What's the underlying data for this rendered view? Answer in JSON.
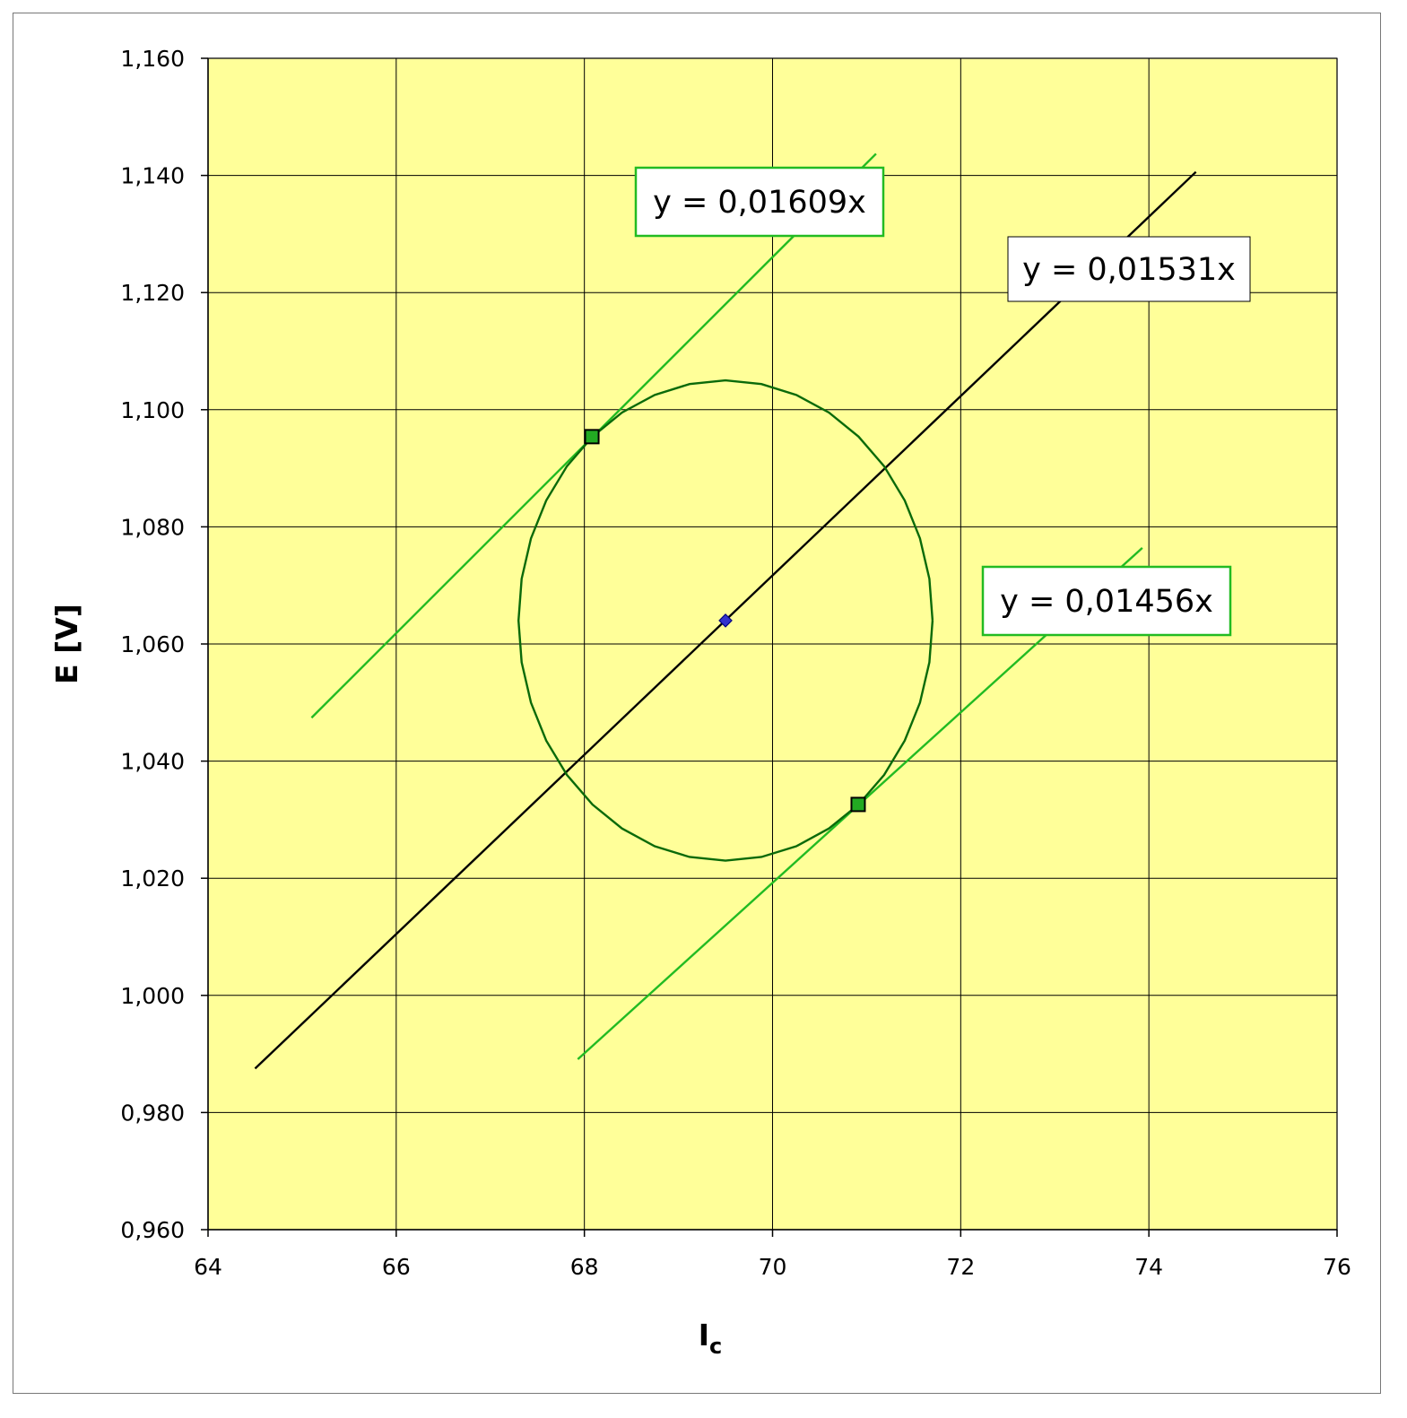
{
  "chart_data": {
    "type": "scatter",
    "title": "",
    "xlabel": "I",
    "xlabel_subscript": "c",
    "ylabel": "E [V]",
    "xlim": [
      64,
      76
    ],
    "ylim": [
      0.96,
      1.16
    ],
    "x_ticks": [
      64,
      66,
      68,
      70,
      72,
      74,
      76
    ],
    "x_tick_labels": [
      "64",
      "66",
      "68",
      "70",
      "72",
      "74",
      "76"
    ],
    "y_ticks": [
      0.96,
      0.98,
      1.0,
      1.02,
      1.04,
      1.06,
      1.08,
      1.1,
      1.12,
      1.14,
      1.16
    ],
    "y_tick_labels": [
      "0,960",
      "0,980",
      "1,000",
      "1,020",
      "1,040",
      "1,060",
      "1,080",
      "1,100",
      "1,120",
      "1,140",
      "1,160"
    ],
    "grid": true,
    "legend": "none",
    "plot_background": "#ffff99",
    "series": [
      {
        "kind": "line",
        "label": "y = 0,01609x",
        "slope": 0.01609,
        "color": "#22bb22",
        "x": [
          65.1,
          71.1
        ],
        "y": [
          1.0474,
          1.1437
        ]
      },
      {
        "kind": "line",
        "label": "y = 0,01531x",
        "slope": 0.01531,
        "color": "#000000",
        "x": [
          64.5,
          74.5
        ],
        "y": [
          0.9875,
          1.1406
        ]
      },
      {
        "kind": "line",
        "label": "y = 0,01456x",
        "slope": 0.01456,
        "color": "#22bb22",
        "x": [
          67.93,
          73.93
        ],
        "y": [
          0.9891,
          1.0764
        ]
      },
      {
        "kind": "ellipse",
        "color": "#0a6a0a",
        "center": [
          69.5,
          1.064
        ],
        "radius_x": 2.2,
        "radius_y": 0.041
      },
      {
        "kind": "points",
        "marker": "diamond",
        "color": "#3333cc",
        "x": [
          69.5
        ],
        "y": [
          1.064
        ]
      },
      {
        "kind": "points",
        "marker": "square",
        "color": "#22aa22",
        "x": [
          68.08,
          70.91
        ],
        "y": [
          1.0954,
          1.0326
        ]
      }
    ],
    "annotations": [
      {
        "text": "y = 0,01609x",
        "border": "#22bb22"
      },
      {
        "text": "y = 0,01531x",
        "border": "#000000"
      },
      {
        "text": "y = 0,01456x",
        "border": "#22bb22"
      }
    ]
  }
}
